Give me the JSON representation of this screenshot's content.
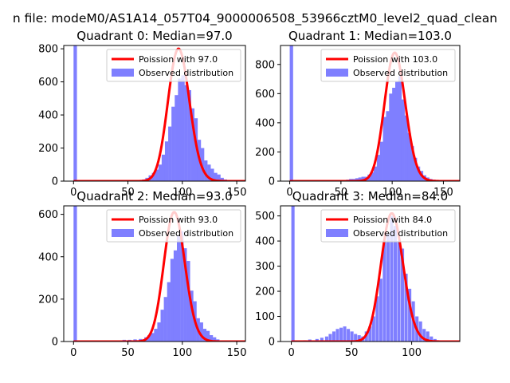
{
  "figure_title": "n file: modeM0/AS1A14_057T04_9000006508_53966cztM0_level2_quad_clean",
  "colors": {
    "poisson": "#ff0000",
    "observed": "#7f7fff",
    "axis": "#000000",
    "legend_edge": "#cccccc"
  },
  "chart_data": [
    {
      "type": "bar",
      "title": "Quadrant 0: Median=97.0",
      "median": 97,
      "xlim": [
        -9,
        158
      ],
      "ylim": [
        0,
        820
      ],
      "xticks": [
        0,
        50,
        100,
        150
      ],
      "yticks": [
        0,
        200,
        400,
        600,
        800
      ],
      "legend_position": "top-right",
      "legend": [
        "Poission with 97.0",
        "Observed distribution"
      ],
      "series": [
        {
          "name": "Observed distribution",
          "bin_width": 3.14,
          "bins": [
            [
              0,
              820
            ],
            [
              60,
              5
            ],
            [
              63,
              10
            ],
            [
              66,
              20
            ],
            [
              69,
              35
            ],
            [
              72,
              50
            ],
            [
              75,
              70
            ],
            [
              78,
              100
            ],
            [
              81,
              160
            ],
            [
              84,
              240
            ],
            [
              87,
              330
            ],
            [
              90,
              450
            ],
            [
              93,
              520
            ],
            [
              96,
              620
            ],
            [
              99,
              640
            ],
            [
              102,
              580
            ],
            [
              105,
              550
            ],
            [
              108,
              440
            ],
            [
              111,
              380
            ],
            [
              114,
              250
            ],
            [
              117,
              200
            ],
            [
              120,
              125
            ],
            [
              123,
              100
            ],
            [
              126,
              75
            ],
            [
              129,
              50
            ],
            [
              132,
              40
            ],
            [
              135,
              20
            ],
            [
              138,
              10
            ],
            [
              141,
              5
            ]
          ]
        },
        {
          "name": "Poission with 97.0",
          "type": "line",
          "lambda": 97,
          "peak": 800
        }
      ]
    },
    {
      "type": "bar",
      "title": "Quadrant 1: Median=103.0",
      "median": 103,
      "xlim": [
        -9,
        166
      ],
      "ylim": [
        0,
        930
      ],
      "xticks": [
        0,
        50,
        100,
        150
      ],
      "yticks": [
        0,
        200,
        400,
        600,
        800
      ],
      "legend_position": "top-right",
      "legend": [
        "Poission with 103.0",
        "Observed distribution"
      ],
      "series": [
        {
          "name": "Observed distribution",
          "bin_width": 3.3,
          "bins": [
            [
              0,
              930
            ],
            [
              55,
              10
            ],
            [
              58,
              15
            ],
            [
              61,
              15
            ],
            [
              64,
              20
            ],
            [
              67,
              25
            ],
            [
              70,
              30
            ],
            [
              73,
              30
            ],
            [
              76,
              45
            ],
            [
              79,
              60
            ],
            [
              82,
              100
            ],
            [
              85,
              180
            ],
            [
              88,
              270
            ],
            [
              91,
              440
            ],
            [
              94,
              480
            ],
            [
              97,
              600
            ],
            [
              100,
              640
            ],
            [
              103,
              680
            ],
            [
              106,
              720
            ],
            [
              109,
              560
            ],
            [
              112,
              450
            ],
            [
              115,
              330
            ],
            [
              118,
              240
            ],
            [
              121,
              160
            ],
            [
              124,
              100
            ],
            [
              127,
              70
            ],
            [
              130,
              40
            ],
            [
              133,
              25
            ],
            [
              136,
              15
            ],
            [
              139,
              10
            ]
          ]
        },
        {
          "name": "Poission with 103.0",
          "type": "line",
          "lambda": 103,
          "peak": 880
        }
      ]
    },
    {
      "type": "bar",
      "title": "Quadrant 2: Median=93.0",
      "median": 93,
      "xlim": [
        -9,
        158
      ],
      "ylim": [
        0,
        640
      ],
      "xticks": [
        0,
        50,
        100,
        150
      ],
      "yticks": [
        0,
        200,
        400,
        600
      ],
      "legend_position": "top-right",
      "legend": [
        "Poission with 93.0",
        "Observed distribution"
      ],
      "series": [
        {
          "name": "Observed distribution",
          "bin_width": 3.14,
          "bins": [
            [
              0,
              640
            ],
            [
              40,
              5
            ],
            [
              45,
              8
            ],
            [
              50,
              8
            ],
            [
              55,
              10
            ],
            [
              60,
              12
            ],
            [
              65,
              20
            ],
            [
              68,
              30
            ],
            [
              71,
              40
            ],
            [
              74,
              60
            ],
            [
              77,
              90
            ],
            [
              80,
              150
            ],
            [
              83,
              210
            ],
            [
              86,
              280
            ],
            [
              89,
              390
            ],
            [
              92,
              430
            ],
            [
              95,
              500
            ],
            [
              98,
              520
            ],
            [
              101,
              440
            ],
            [
              104,
              380
            ],
            [
              107,
              240
            ],
            [
              110,
              190
            ],
            [
              113,
              110
            ],
            [
              116,
              90
            ],
            [
              119,
              60
            ],
            [
              122,
              50
            ],
            [
              125,
              30
            ],
            [
              128,
              20
            ],
            [
              131,
              10
            ],
            [
              134,
              5
            ]
          ]
        },
        {
          "name": "Poission with 93.0",
          "type": "line",
          "lambda": 93,
          "peak": 610
        }
      ]
    },
    {
      "type": "bar",
      "title": "Quadrant 3: Median=84.0",
      "median": 84,
      "xlim": [
        -9,
        140
      ],
      "ylim": [
        0,
        540
      ],
      "xticks": [
        0,
        50,
        100
      ],
      "yticks": [
        0,
        100,
        200,
        300,
        400,
        500
      ],
      "legend_position": "top-right",
      "legend": [
        "Poission with 84.0",
        "Observed distribution"
      ],
      "series": [
        {
          "name": "Observed distribution",
          "bin_width": 2.7,
          "bins": [
            [
              0,
              540
            ],
            [
              10,
              5
            ],
            [
              14,
              8
            ],
            [
              20,
              10
            ],
            [
              24,
              15
            ],
            [
              28,
              20
            ],
            [
              31,
              30
            ],
            [
              34,
              40
            ],
            [
              37,
              50
            ],
            [
              40,
              55
            ],
            [
              43,
              60
            ],
            [
              46,
              50
            ],
            [
              49,
              40
            ],
            [
              52,
              30
            ],
            [
              55,
              25
            ],
            [
              58,
              20
            ],
            [
              61,
              40
            ],
            [
              64,
              60
            ],
            [
              67,
              100
            ],
            [
              70,
              180
            ],
            [
              73,
              250
            ],
            [
              76,
              400
            ],
            [
              79,
              430
            ],
            [
              82,
              500
            ],
            [
              85,
              460
            ],
            [
              88,
              400
            ],
            [
              91,
              370
            ],
            [
              94,
              270
            ],
            [
              97,
              210
            ],
            [
              100,
              160
            ],
            [
              103,
              100
            ],
            [
              106,
              80
            ],
            [
              109,
              50
            ],
            [
              112,
              40
            ],
            [
              115,
              20
            ],
            [
              118,
              10
            ],
            [
              121,
              5
            ]
          ]
        },
        {
          "name": "Poission with 84.0",
          "type": "line",
          "lambda": 84,
          "peak": 510
        }
      ]
    }
  ]
}
